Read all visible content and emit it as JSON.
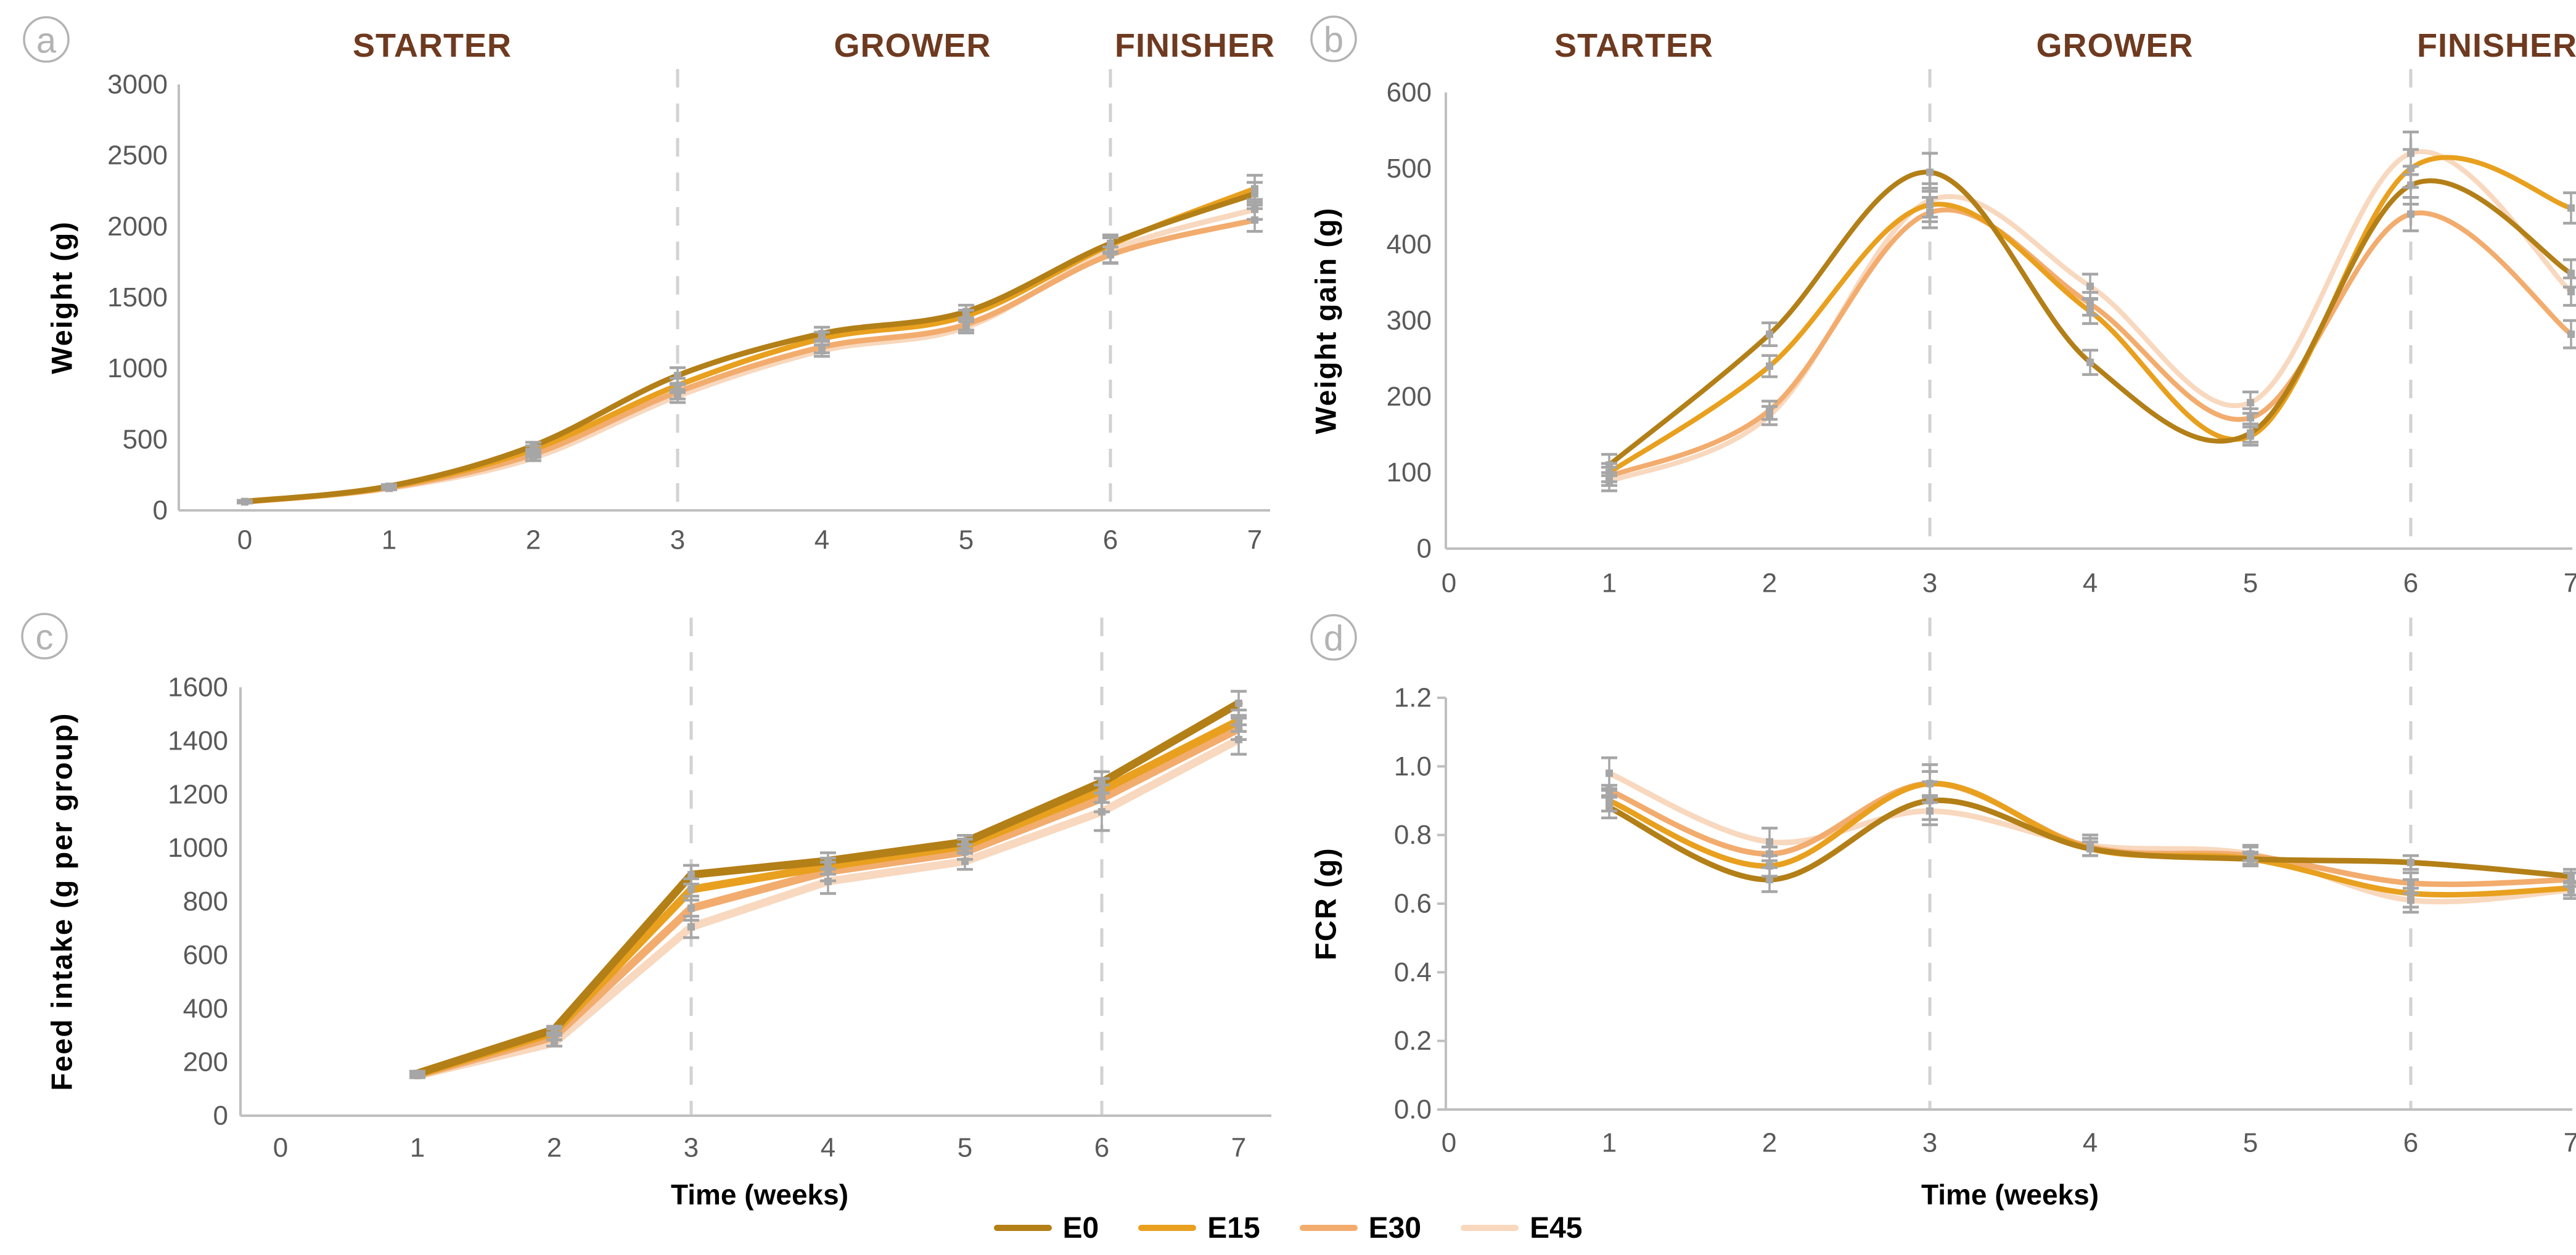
{
  "figure_title": "",
  "styles": {
    "background": "#FFFFFF",
    "axis_color": "#BFBFBF",
    "tick_label_color": "#595959",
    "dash_line_color": "#D2D2D2",
    "error_bar_color": "#A6A6A6",
    "phase_label_color": "#6E3A20",
    "panel_badge_color": "#B3B3B3",
    "axis_title_color": "#000000"
  },
  "phases": {
    "labels": [
      "STARTER",
      "GROWER",
      "FINISHER"
    ],
    "boundaries_weeks": [
      3,
      6
    ]
  },
  "legend": {
    "items": [
      {
        "label": "E0",
        "color": "#B37F17"
      },
      {
        "label": "E15",
        "color": "#E8A01E"
      },
      {
        "label": "E30",
        "color": "#F2AC6E"
      },
      {
        "label": "E45",
        "color": "#F8D8BE"
      }
    ]
  },
  "chart_data": [
    {
      "panel": "a",
      "type": "line",
      "smooth": true,
      "show_phase_labels": true,
      "ylabel": "Weight (g)",
      "xlabel": "",
      "x": [
        0,
        1,
        2,
        3,
        4,
        5,
        6,
        7
      ],
      "xticks": [
        0,
        1,
        2,
        3,
        4,
        5,
        6,
        7
      ],
      "ylim": [
        0,
        3000
      ],
      "ystep": 500,
      "ydecimals": 0,
      "phase_boundaries_weeks": [
        3,
        6
      ],
      "series": [
        {
          "name": "E0",
          "color": "#B37F17",
          "values": [
            62,
            170,
            455,
            950,
            1245,
            1400,
            1880,
            2230
          ],
          "err": [
            8,
            12,
            25,
            55,
            45,
            45,
            60,
            80
          ]
        },
        {
          "name": "E15",
          "color": "#E8A01E",
          "values": [
            62,
            165,
            430,
            880,
            1210,
            1370,
            1870,
            2265
          ],
          "err": [
            8,
            12,
            25,
            50,
            45,
            40,
            60,
            95
          ]
        },
        {
          "name": "E30",
          "color": "#F2AC6E",
          "values": [
            60,
            160,
            395,
            835,
            1150,
            1310,
            1800,
            2045
          ],
          "err": [
            8,
            10,
            22,
            50,
            40,
            40,
            55,
            80
          ]
        },
        {
          "name": "E45",
          "color": "#F8D8BE",
          "values": [
            60,
            155,
            370,
            805,
            1125,
            1290,
            1830,
            2120
          ],
          "err": [
            8,
            10,
            20,
            45,
            40,
            40,
            90,
            70
          ]
        }
      ]
    },
    {
      "panel": "b",
      "type": "line",
      "smooth": true,
      "show_phase_labels": true,
      "ylabel": "Weight gain (g)",
      "xlabel": "",
      "x": [
        1,
        2,
        3,
        4,
        5,
        6,
        7
      ],
      "xticks": [
        0,
        1,
        2,
        3,
        4,
        5,
        6,
        7
      ],
      "ylim": [
        0,
        600
      ],
      "ystep": 100,
      "ydecimals": 0,
      "phase_boundaries_weeks": [
        3,
        6
      ],
      "series": [
        {
          "name": "E0",
          "color": "#B37F17",
          "values": [
            110,
            282,
            495,
            245,
            152,
            478,
            362
          ],
          "err": [
            14,
            15,
            25,
            16,
            12,
            25,
            18
          ]
        },
        {
          "name": "E15",
          "color": "#E8A01E",
          "values": [
            100,
            240,
            452,
            312,
            148,
            500,
            448
          ],
          "err": [
            12,
            14,
            22,
            16,
            12,
            25,
            20
          ]
        },
        {
          "name": "E30",
          "color": "#F2AC6E",
          "values": [
            95,
            182,
            442,
            322,
            172,
            440,
            282
          ],
          "err": [
            12,
            12,
            20,
            15,
            12,
            22,
            18
          ]
        },
        {
          "name": "E45",
          "color": "#F8D8BE",
          "values": [
            88,
            175,
            458,
            345,
            192,
            520,
            338
          ],
          "err": [
            12,
            12,
            22,
            16,
            14,
            28,
            18
          ]
        }
      ]
    },
    {
      "panel": "c",
      "type": "line",
      "smooth": false,
      "show_phase_labels": false,
      "ylabel": "Feed intake (g per group)",
      "xlabel": "Time (weeks)",
      "x": [
        1,
        2,
        3,
        4,
        5,
        6,
        7
      ],
      "xticks": [
        0,
        1,
        2,
        3,
        4,
        5,
        6,
        7
      ],
      "ylim": [
        0,
        1600
      ],
      "ystep": 200,
      "ydecimals": 0,
      "phase_boundaries_weeks": [
        3,
        6
      ],
      "series": [
        {
          "name": "E0",
          "color": "#B37F17",
          "values": [
            158,
            322,
            900,
            952,
            1022,
            1245,
            1540
          ],
          "err": [
            8,
            12,
            35,
            30,
            25,
            40,
            45
          ]
        },
        {
          "name": "E15",
          "color": "#E8A01E",
          "values": [
            155,
            312,
            845,
            932,
            1008,
            1215,
            1475
          ],
          "err": [
            8,
            12,
            40,
            30,
            25,
            45,
            40
          ]
        },
        {
          "name": "E30",
          "color": "#F2AC6E",
          "values": [
            152,
            295,
            775,
            912,
            985,
            1185,
            1445
          ],
          "err": [
            8,
            12,
            45,
            35,
            28,
            50,
            40
          ]
        },
        {
          "name": "E45",
          "color": "#F8D8BE",
          "values": [
            150,
            272,
            705,
            875,
            950,
            1135,
            1405
          ],
          "err": [
            8,
            12,
            40,
            45,
            30,
            70,
            55
          ]
        }
      ]
    },
    {
      "panel": "d",
      "type": "line",
      "smooth": true,
      "show_phase_labels": false,
      "ylabel": "FCR (g)",
      "xlabel": "Time (weeks)",
      "x": [
        1,
        2,
        3,
        4,
        5,
        6,
        7
      ],
      "xticks": [
        0,
        1,
        2,
        3,
        4,
        5,
        6,
        7
      ],
      "ylim": [
        0,
        1.2
      ],
      "ystep": 0.2,
      "ydecimals": 1,
      "phase_boundaries_weeks": [
        3,
        6
      ],
      "series": [
        {
          "name": "E0",
          "color": "#B37F17",
          "values": [
            0.88,
            0.67,
            0.9,
            0.76,
            0.73,
            0.72,
            0.68
          ],
          "err": [
            0.03,
            0.035,
            0.055,
            0.02,
            0.02,
            0.02,
            0.02
          ]
        },
        {
          "name": "E15",
          "color": "#E8A01E",
          "values": [
            0.9,
            0.71,
            0.95,
            0.76,
            0.73,
            0.63,
            0.645
          ],
          "err": [
            0.03,
            0.03,
            0.035,
            0.02,
            0.015,
            0.04,
            0.02
          ]
        },
        {
          "name": "E30",
          "color": "#F2AC6E",
          "values": [
            0.93,
            0.745,
            0.95,
            0.765,
            0.74,
            0.66,
            0.67
          ],
          "err": [
            0.015,
            0.02,
            0.055,
            0.025,
            0.03,
            0.03,
            0.02
          ]
        },
        {
          "name": "E45",
          "color": "#F8D8BE",
          "values": [
            0.98,
            0.78,
            0.87,
            0.77,
            0.745,
            0.61,
            0.64
          ],
          "err": [
            0.045,
            0.04,
            0.04,
            0.03,
            0.02,
            0.035,
            0.025
          ]
        }
      ]
    }
  ]
}
